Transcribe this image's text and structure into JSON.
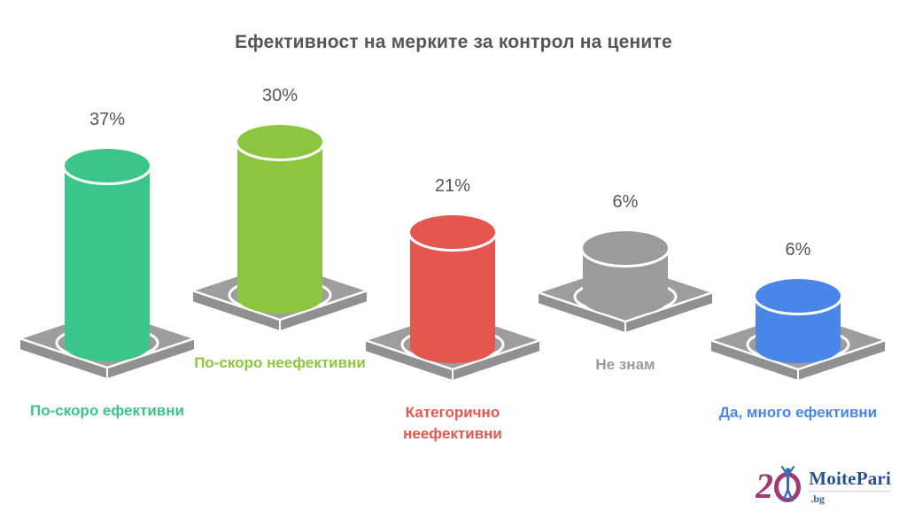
{
  "title": "Ефективност на мерките за контрол на цените",
  "chart_data": {
    "type": "bar",
    "subtype": "3d-cylinder-on-isometric-platform",
    "title": "Ефективност на мерките за контрол на цените",
    "unit": "%",
    "categories": [
      "По-скоро ефективни",
      "По-скоро неефективни",
      "Категорично неефективни",
      "Не знам",
      "Да, много ефективни"
    ],
    "values": [
      37,
      30,
      21,
      6,
      6
    ],
    "bars": [
      {
        "label": "По-скоро ефективни",
        "value": 37,
        "value_label": "37%",
        "color": "#3BC588"
      },
      {
        "label": "По-скоро неефективни",
        "value": 30,
        "value_label": "30%",
        "color": "#8CC63F"
      },
      {
        "label": "Категорично неефективни",
        "value": 21,
        "value_label": "21%",
        "color": "#E4564E"
      },
      {
        "label": "Не знам",
        "value": 6,
        "value_label": "6%",
        "color": "#9B9B9B"
      },
      {
        "label": "Да, много ефективни",
        "value": 6,
        "value_label": "6%",
        "color": "#4A86E8"
      }
    ],
    "legend": "none",
    "grid": "off",
    "axes": "none",
    "platform_top_color": "#9D9D9D",
    "platform_side_color": "#909090",
    "value_label_color": "#565658"
  },
  "branding": {
    "logo_number": "2",
    "logo_text": "MoitePari",
    "logo_suffix": ".bg",
    "logo_magenta": "#A13A74",
    "logo_figure_blue": "#3B6FB5",
    "logo_navy": "#27518F"
  }
}
